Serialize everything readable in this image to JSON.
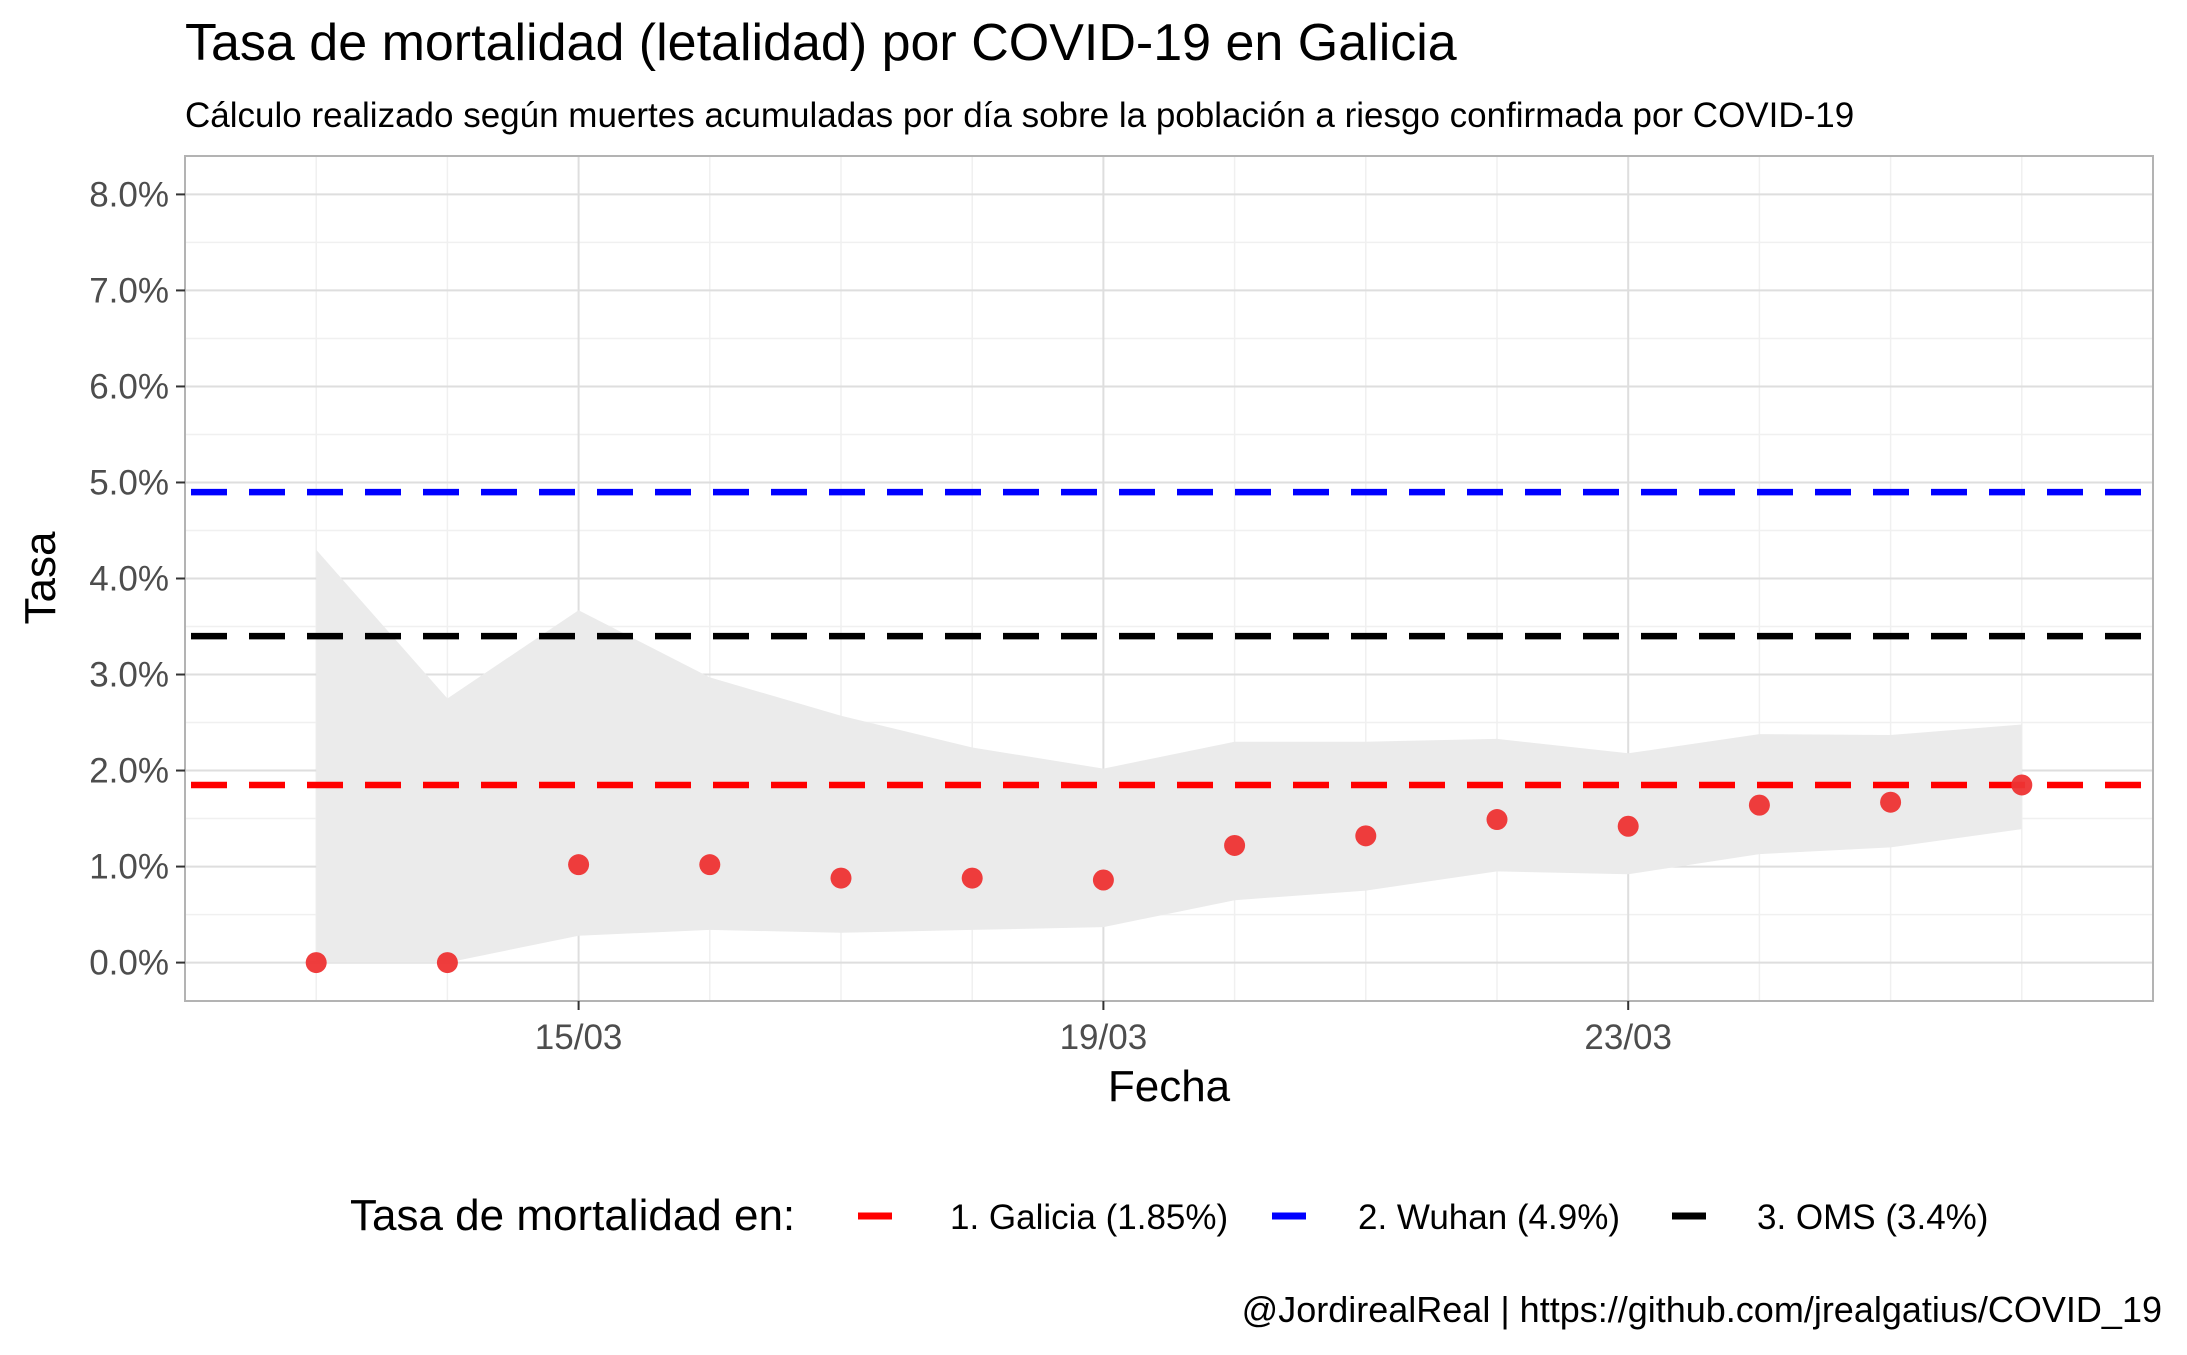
{
  "chart_data": {
    "type": "scatter",
    "title": "Tasa de mortalidad (letalidad) por COVID-19 en Galicia",
    "subtitle": "Cálculo realizado según muertes acumuladas por día sobre la población a riesgo confirmada por COVID-19",
    "xlabel": "Fecha",
    "ylabel": "Tasa",
    "caption": "@JordirealReal | https://github.com/jrealgatius/COVID_19",
    "x_ticks": [
      "15/03",
      "19/03",
      "23/03"
    ],
    "y_ticks": [
      "0.0%",
      "1.0%",
      "2.0%",
      "3.0%",
      "4.0%",
      "5.0%",
      "6.0%",
      "7.0%",
      "8.0%"
    ],
    "ylim": [
      -0.004,
      0.084
    ],
    "xlim": [
      "12/03",
      "27/03"
    ],
    "grid": true,
    "legend_position": "bottom",
    "legend_title": "Tasa de mortalidad en:",
    "dates": [
      "13/03",
      "14/03",
      "15/03",
      "16/03",
      "17/03",
      "18/03",
      "19/03",
      "20/03",
      "21/03",
      "22/03",
      "23/03",
      "24/03",
      "25/03",
      "26/03"
    ],
    "points": [
      0.0,
      0.0,
      0.0102,
      0.0102,
      0.0088,
      0.0088,
      0.0086,
      0.0122,
      0.0132,
      0.0149,
      0.0142,
      0.0164,
      0.0167,
      0.0185
    ],
    "band_upper": [
      0.043,
      0.0275,
      0.0367,
      0.0297,
      0.0257,
      0.0224,
      0.0202,
      0.023,
      0.023,
      0.0233,
      0.0218,
      0.0238,
      0.0237,
      0.0248
    ],
    "band_lower": [
      0.0,
      0.0,
      0.0028,
      0.0034,
      0.0031,
      0.0034,
      0.0037,
      0.0065,
      0.0075,
      0.0095,
      0.0092,
      0.0113,
      0.012,
      0.0139
    ],
    "point_color": "#ee3333",
    "band_color": "#ebebeb",
    "reference_lines": [
      {
        "label": "1. Galicia (1.85%)",
        "value": 0.0185,
        "color": "#ff0000"
      },
      {
        "label": "2. Wuhan (4.9%)",
        "value": 0.049,
        "color": "#0000ff"
      },
      {
        "label": "3. OMS (3.4%)",
        "value": 0.034,
        "color": "#000000"
      }
    ]
  }
}
